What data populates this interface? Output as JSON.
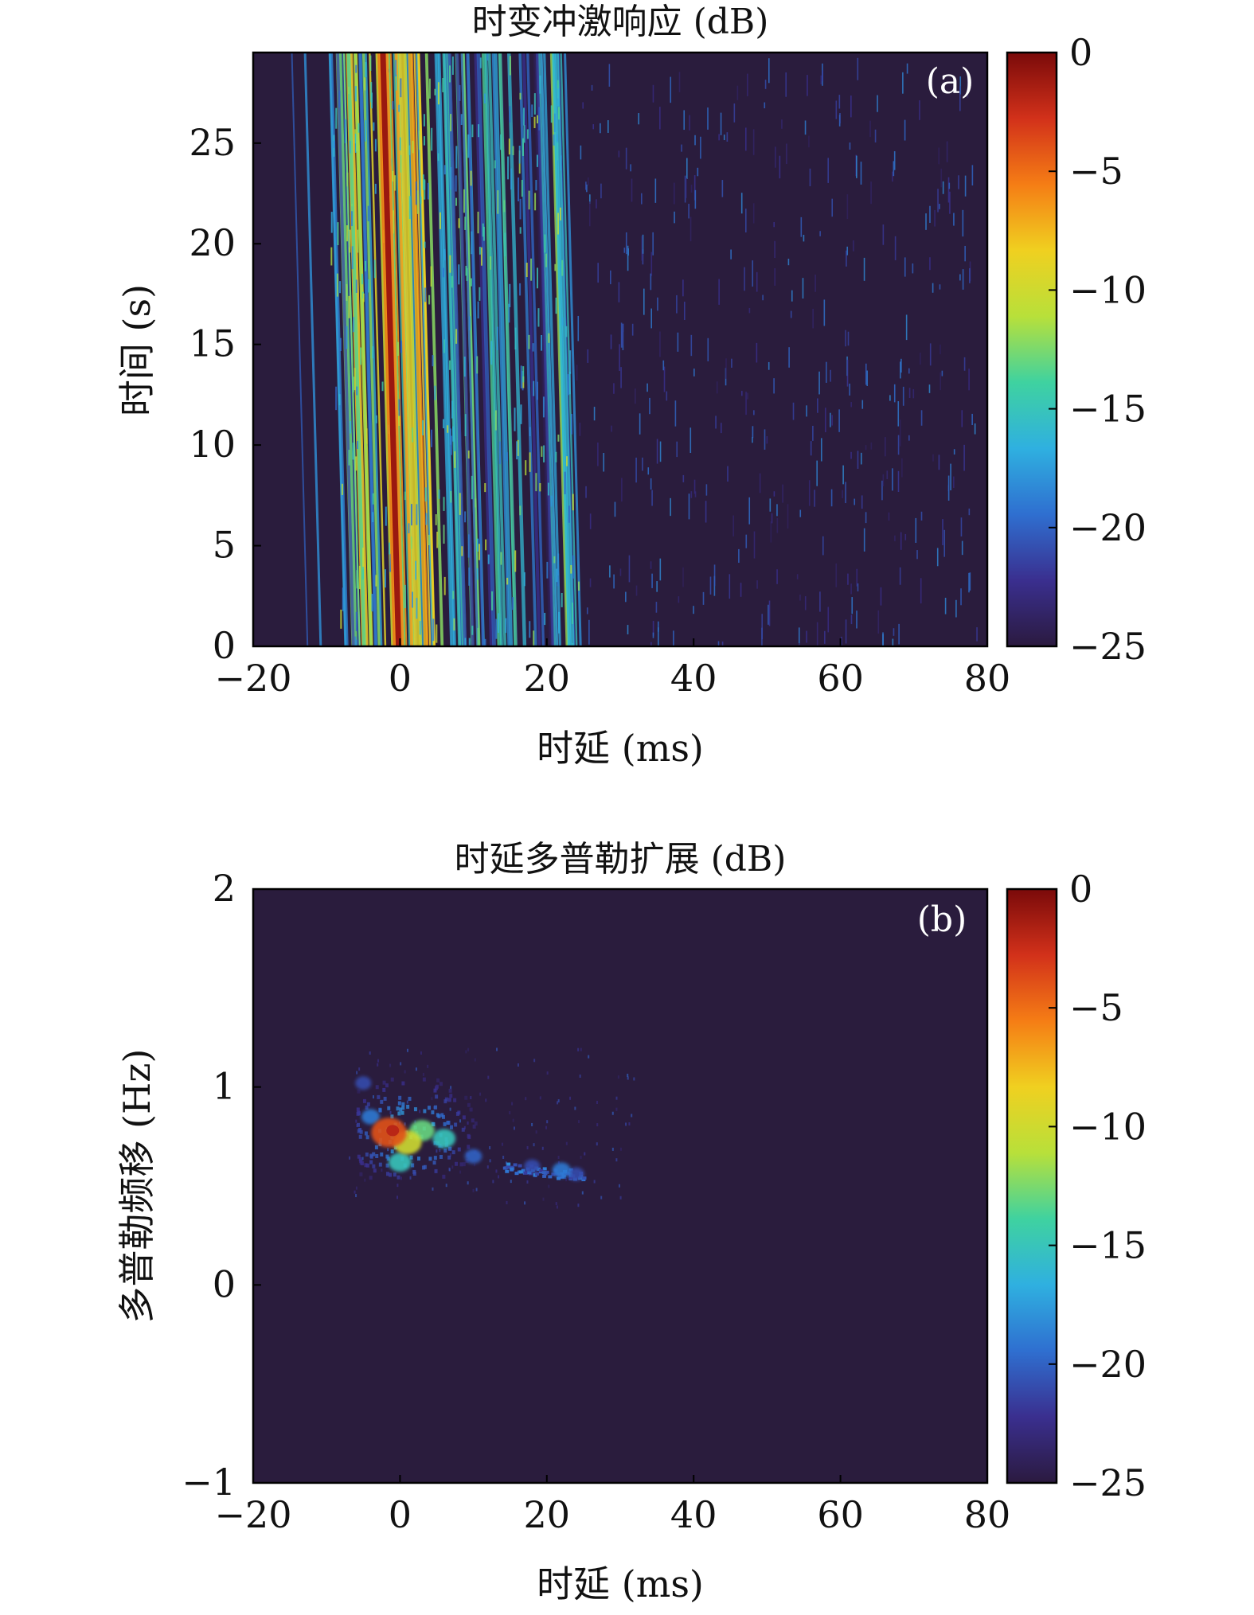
{
  "colormap": [
    "#2b1a3f",
    "#3a2f8f",
    "#2f6fd0",
    "#2fb0e0",
    "#3fd2a0",
    "#b8e03a",
    "#f0d020",
    "#f57d15",
    "#d2311a",
    "#7a0a0a"
  ],
  "background_color": "#2a1c3d",
  "chart_data": [
    {
      "panel": "(a)",
      "type": "heatmap",
      "title": "时变冲激响应 (dB)",
      "xlabel": "时延 (ms)",
      "ylabel": "时间 (s)",
      "xlim": [
        -20,
        80
      ],
      "ylim": [
        0,
        29.5
      ],
      "xticks": [
        -20,
        0,
        20,
        40,
        60,
        80
      ],
      "yticks": [
        0,
        5,
        10,
        15,
        20,
        25
      ],
      "xtick_labels": [
        "−20",
        "0",
        "20",
        "40",
        "60",
        "80"
      ],
      "ytick_labels": [
        "0",
        "5",
        "10",
        "15",
        "20",
        "25"
      ],
      "colorbar": {
        "range": [
          -25,
          0
        ],
        "ticks": [
          0,
          -5,
          -10,
          -15,
          -20,
          -25
        ],
        "tick_labels": [
          "0",
          "−5",
          "−10",
          "−15",
          "−20",
          "−25"
        ]
      },
      "features": {
        "main_path": {
          "delay_at_t0_ms": -0.2,
          "delay_at_t29_ms": -2.3,
          "level_db": -1
        },
        "dense_multipath_ms": [
          -8,
          25
        ],
        "sparse_scatter_ms": [
          25,
          80
        ],
        "weak_early_path_ms": [
          -11,
          -13
        ]
      }
    },
    {
      "panel": "(b)",
      "type": "heatmap",
      "title": "时延多普勒扩展 (dB)",
      "xlabel": "时延 (ms)",
      "ylabel": "多普勒频移 (Hz)",
      "xlim": [
        -20,
        80
      ],
      "ylim": [
        -1,
        2
      ],
      "xticks": [
        -20,
        0,
        20,
        40,
        60,
        80
      ],
      "yticks": [
        -1,
        0,
        1,
        2
      ],
      "xtick_labels": [
        "−20",
        "0",
        "20",
        "40",
        "60",
        "80"
      ],
      "ytick_labels": [
        "−1",
        "0",
        "1",
        "2"
      ],
      "colorbar": {
        "range": [
          -25,
          0
        ],
        "ticks": [
          0,
          -5,
          -10,
          -15,
          -20,
          -25
        ],
        "tick_labels": [
          "0",
          "−5",
          "−10",
          "−15",
          "−20",
          "−25"
        ]
      },
      "features": {
        "peak": {
          "delay_ms": -1,
          "doppler_hz": 0.78,
          "level_db": -2
        },
        "blobs": [
          {
            "delay_ms": -1.5,
            "doppler_hz": 0.77,
            "level_db": -4
          },
          {
            "delay_ms": 1,
            "doppler_hz": 0.72,
            "level_db": -10
          },
          {
            "delay_ms": 3,
            "doppler_hz": 0.78,
            "level_db": -13
          },
          {
            "delay_ms": 6,
            "doppler_hz": 0.74,
            "level_db": -15
          },
          {
            "delay_ms": 0,
            "doppler_hz": 0.62,
            "level_db": -15
          },
          {
            "delay_ms": -4,
            "doppler_hz": 0.85,
            "level_db": -19
          },
          {
            "delay_ms": -5,
            "doppler_hz": 1.02,
            "level_db": -21
          },
          {
            "delay_ms": 10,
            "doppler_hz": 0.65,
            "level_db": -20
          },
          {
            "delay_ms": 18,
            "doppler_hz": 0.6,
            "level_db": -21
          },
          {
            "delay_ms": 22,
            "doppler_hz": 0.58,
            "level_db": -19
          },
          {
            "delay_ms": 24,
            "doppler_hz": 0.56,
            "level_db": -21
          }
        ]
      }
    }
  ]
}
